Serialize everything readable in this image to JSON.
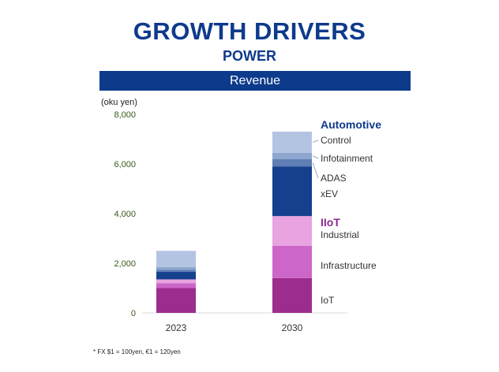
{
  "header": {
    "title": "GROWTH DRIVERS",
    "subtitle": "POWER",
    "banner": "Revenue"
  },
  "footnote": "* FX $1 = 100yen, €1 = 120yen",
  "chart_data": {
    "type": "bar",
    "stacked": true,
    "unit_label": "(oku yen)",
    "categories": [
      "2023",
      "2030"
    ],
    "ylim": [
      0,
      8000
    ],
    "yticks": [
      0,
      2000,
      4000,
      6000,
      8000
    ],
    "ytick_labels": [
      "0",
      "2,000",
      "4,000",
      "6,000",
      "8,000"
    ],
    "series": [
      {
        "name": "IoT",
        "group": "IIoT",
        "color": "#9c2d8e",
        "values": [
          1000,
          1400
        ]
      },
      {
        "name": "Infrastructure",
        "group": "IIoT",
        "color": "#cc66c8",
        "values": [
          200,
          1300
        ]
      },
      {
        "name": "Industrial",
        "group": "IIoT",
        "color": "#e8a3e0",
        "values": [
          150,
          1200
        ]
      },
      {
        "name": "xEV",
        "group": "Automotive",
        "color": "#14408e",
        "values": [
          300,
          2000
        ]
      },
      {
        "name": "ADAS",
        "group": "Automotive",
        "color": "#5f7fb5",
        "values": [
          80,
          300
        ]
      },
      {
        "name": "Infotainment",
        "group": "Automotive",
        "color": "#8fa6cf",
        "values": [
          120,
          250
        ]
      },
      {
        "name": "Control",
        "group": "Automotive",
        "color": "#b3c4e3",
        "values": [
          650,
          850
        ]
      }
    ],
    "groups": [
      {
        "name": "Automotive",
        "color": "#0e3a8c"
      },
      {
        "name": "IIoT",
        "color": "#8b2a8f"
      }
    ],
    "tick_label_color": "#3a5a1a"
  }
}
